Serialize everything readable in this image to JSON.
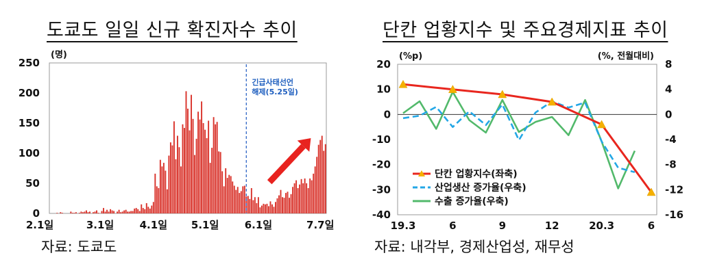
{
  "left": {
    "title": "도쿄도 일일 신규 확진자수 추이",
    "source": "자료: 도쿄도",
    "annotation": [
      "긴급사태선언",
      "해제(5.25일)"
    ],
    "bar_color": "#d9332b",
    "arrow_color": "#e8231f",
    "dashline_color": "#3b6fc9"
  },
  "right": {
    "title": "단칸 업황지수 및 주요경제지표 추이",
    "source": "자료: 내각부, 경제산업성, 재무성"
  },
  "chart_data": [
    {
      "type": "bar",
      "title": "도쿄도 일일 신규 확진자수 추이",
      "ylabel": "(명)",
      "ylim": [
        0,
        250
      ],
      "yticks": [
        0,
        50,
        100,
        150,
        200,
        250
      ],
      "xtick_labels": [
        "2.1일",
        "3.1일",
        "4.1일",
        "5.1일",
        "6.1일",
        "7.7일"
      ],
      "xtick_index": [
        0,
        29,
        60,
        90,
        121,
        157
      ],
      "annotation_index": 114,
      "values": [
        0,
        0,
        0,
        0,
        1,
        0,
        2,
        1,
        0,
        0,
        0,
        0,
        3,
        1,
        1,
        2,
        0,
        1,
        3,
        2,
        3,
        5,
        2,
        3,
        0,
        2,
        3,
        5,
        1,
        0,
        4,
        9,
        3,
        6,
        3,
        7,
        5,
        4,
        0,
        3,
        6,
        2,
        3,
        5,
        6,
        3,
        3,
        4,
        4,
        8,
        9,
        7,
        4,
        15,
        9,
        7,
        17,
        11,
        8,
        13,
        19,
        66,
        45,
        42,
        89,
        78,
        84,
        71,
        40,
        96,
        118,
        113,
        153,
        90,
        129,
        110,
        78,
        148,
        142,
        203,
        174,
        138,
        197,
        157,
        97,
        124,
        169,
        156,
        186,
        150,
        139,
        125,
        154,
        84,
        109,
        160,
        148,
        152,
        103,
        102,
        70,
        45,
        75,
        59,
        64,
        62,
        53,
        46,
        39,
        44,
        34,
        37,
        45,
        46,
        28,
        29,
        24,
        42,
        22,
        27,
        17,
        27,
        10,
        13,
        16,
        15,
        16,
        12,
        20,
        15,
        11,
        19,
        25,
        30,
        39,
        27,
        26,
        34,
        36,
        26,
        32,
        44,
        50,
        55,
        42,
        48,
        57,
        50,
        58,
        50,
        42,
        58,
        55,
        66,
        78,
        94,
        114,
        122,
        129,
        104,
        115
      ],
      "arrow": {
        "from": [
          128,
          52
        ],
        "to": [
          152,
          125
        ]
      }
    },
    {
      "type": "line",
      "title": "단칸 업황지수 및 주요경제지표 추이",
      "x_tick_labels": [
        "19.3",
        "6",
        "9",
        "12",
        "20.3",
        "6"
      ],
      "y_left": {
        "unit": "(%p)",
        "ylim": [
          -40,
          20
        ],
        "ticks": [
          20,
          10,
          0,
          -10,
          -20,
          -30,
          -40
        ]
      },
      "y_right": {
        "unit": "(%, 전월대비)",
        "ylim": [
          -16,
          8
        ],
        "ticks": [
          8,
          4,
          0,
          -4,
          -8,
          -12,
          -16
        ]
      },
      "series": [
        {
          "name": "단칸 업황지수(좌축)",
          "axis": "left",
          "color": "#e8261e",
          "marker": "triangle",
          "marker_color": "#f5b000",
          "x": [
            0,
            3,
            6,
            9,
            12,
            15
          ],
          "values": [
            12,
            10,
            8,
            5,
            -4,
            -31
          ]
        },
        {
          "name": "산업생산 증가율(우축)",
          "axis": "right",
          "color": "#23a7e6",
          "dashed": true,
          "x": [
            0,
            1,
            2,
            3,
            4,
            5,
            6,
            7,
            8,
            9,
            10,
            11,
            12,
            13,
            14
          ],
          "values": [
            -0.6,
            -0.2,
            1.2,
            -2.0,
            0.5,
            -1.7,
            1.6,
            -4.1,
            0.3,
            2.1,
            1.1,
            1.9,
            -4.3,
            -8.5,
            -9.2
          ]
        },
        {
          "name": "수출 증가율(우축)",
          "axis": "right",
          "color": "#52b96b",
          "x": [
            0,
            1,
            2,
            3,
            4,
            5,
            6,
            7,
            8,
            9,
            10,
            11,
            12,
            13,
            14
          ],
          "values": [
            0.2,
            2.1,
            -2.3,
            3.6,
            -0.9,
            -2.9,
            2.3,
            -2.8,
            -1.2,
            -0.4,
            -3.3,
            2.3,
            -4.3,
            -11.8,
            -5.8
          ]
        }
      ]
    }
  ]
}
